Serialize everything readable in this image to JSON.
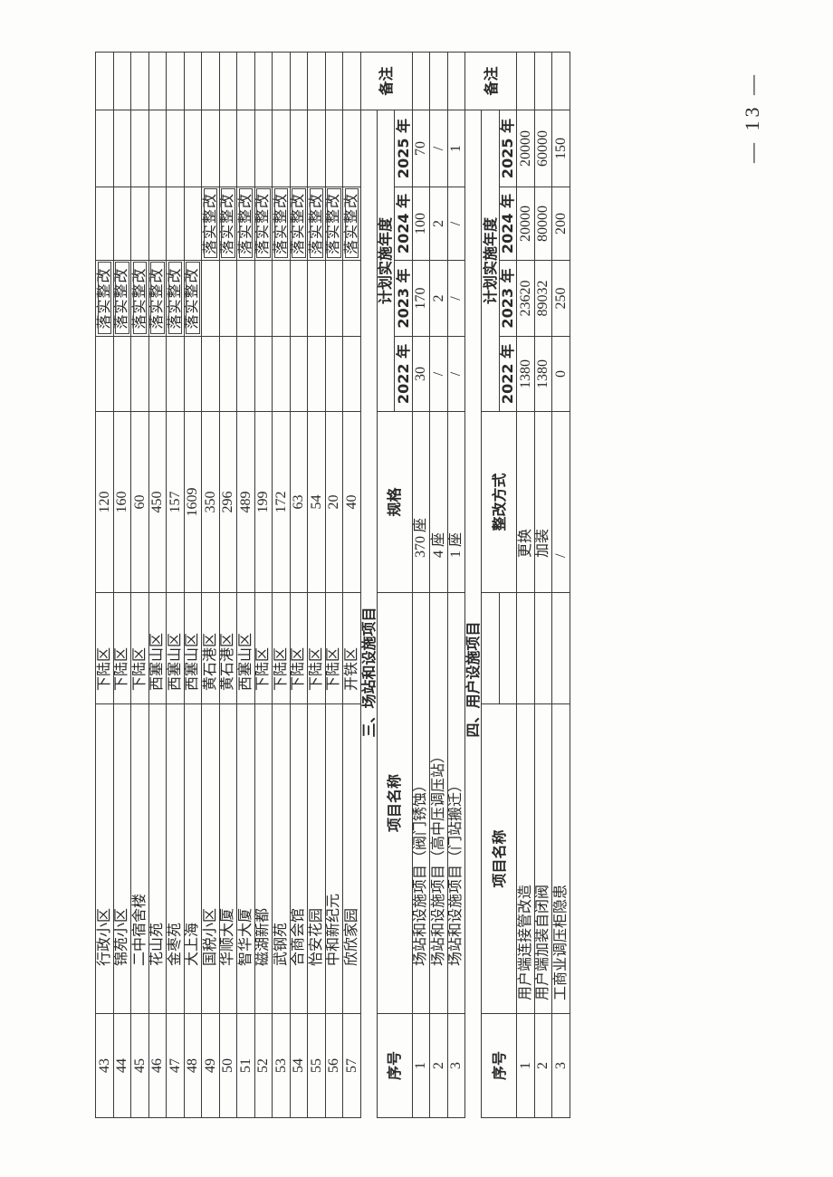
{
  "section_main": {
    "rows": [
      {
        "no": "43",
        "name": "行政小区",
        "district": "下陆区",
        "spec": "120",
        "y2022": "",
        "y2023": "落实整改",
        "y2024": "",
        "y2025": "",
        "note": ""
      },
      {
        "no": "44",
        "name": "锦苑小区",
        "district": "下陆区",
        "spec": "160",
        "y2022": "",
        "y2023": "落实整改",
        "y2024": "",
        "y2025": "",
        "note": ""
      },
      {
        "no": "45",
        "name": "二中宿舍楼",
        "district": "下陆区",
        "spec": "60",
        "y2022": "",
        "y2023": "落实整改",
        "y2024": "",
        "y2025": "",
        "note": ""
      },
      {
        "no": "46",
        "name": "花山苑",
        "district": "西塞山区",
        "spec": "450",
        "y2022": "",
        "y2023": "落实整改",
        "y2024": "",
        "y2025": "",
        "note": ""
      },
      {
        "no": "47",
        "name": "金枣苑",
        "district": "西塞山区",
        "spec": "157",
        "y2022": "",
        "y2023": "落实整改",
        "y2024": "",
        "y2025": "",
        "note": ""
      },
      {
        "no": "48",
        "name": "大上海",
        "district": "西塞山区",
        "spec": "1609",
        "y2022": "",
        "y2023": "落实整改",
        "y2024": "",
        "y2025": "",
        "note": ""
      },
      {
        "no": "49",
        "name": "国税小区",
        "district": "黄石港区",
        "spec": "350",
        "y2022": "",
        "y2023": "",
        "y2024": "落实整改",
        "y2025": "",
        "note": ""
      },
      {
        "no": "50",
        "name": "华顺大厦",
        "district": "黄石港区",
        "spec": "296",
        "y2022": "",
        "y2023": "",
        "y2024": "落实整改",
        "y2025": "",
        "note": ""
      },
      {
        "no": "51",
        "name": "智华大厦",
        "district": "西塞山区",
        "spec": "489",
        "y2022": "",
        "y2023": "",
        "y2024": "落实整改",
        "y2025": "",
        "note": ""
      },
      {
        "no": "52",
        "name": "磁湖新都",
        "district": "下陆区",
        "spec": "199",
        "y2022": "",
        "y2023": "",
        "y2024": "落实整改",
        "y2025": "",
        "note": ""
      },
      {
        "no": "53",
        "name": "武钢苑",
        "district": "下陆区",
        "spec": "172",
        "y2022": "",
        "y2023": "",
        "y2024": "落实整改",
        "y2025": "",
        "note": ""
      },
      {
        "no": "54",
        "name": "合商会馆",
        "district": "下陆区",
        "spec": "63",
        "y2022": "",
        "y2023": "",
        "y2024": "落实整改",
        "y2025": "",
        "note": ""
      },
      {
        "no": "55",
        "name": "怡安花园",
        "district": "下陆区",
        "spec": "54",
        "y2022": "",
        "y2023": "",
        "y2024": "落实整改",
        "y2025": "",
        "note": ""
      },
      {
        "no": "56",
        "name": "中和新纪元",
        "district": "下陆区",
        "spec": "20",
        "y2022": "",
        "y2023": "",
        "y2024": "落实整改",
        "y2025": "",
        "note": ""
      },
      {
        "no": "57",
        "name": "欣欣家园",
        "district": "开铁区",
        "spec": "40",
        "y2022": "",
        "y2023": "",
        "y2024": "落实整改",
        "y2025": "",
        "note": ""
      }
    ]
  },
  "section3": {
    "title": "三、场站和设施项目",
    "headers": {
      "no": "序号",
      "name": "项目名称",
      "spec": "规格",
      "plan": "计划实施年度",
      "y2022": "2022 年",
      "y2023": "2023 年",
      "y2024": "2024 年",
      "y2025": "2025 年",
      "note": "备注"
    },
    "rows": [
      {
        "no": "1",
        "name": "场站和设施项目（阀门锈蚀）",
        "spec": "370 座",
        "y2022": "30",
        "y2023": "170",
        "y2024": "100",
        "y2025": "70"
      },
      {
        "no": "2",
        "name": "场站和设施项目（高中压调压站）",
        "spec": "4 座",
        "y2022": "/",
        "y2023": "2",
        "y2024": "2",
        "y2025": "/"
      },
      {
        "no": "3",
        "name": "场站和设施项目（门站搬迁）",
        "spec": "1 座",
        "y2022": "/",
        "y2023": "/",
        "y2024": "/",
        "y2025": "1"
      }
    ]
  },
  "section4": {
    "title": "四、用户设施项目",
    "headers": {
      "no": "序号",
      "name": "项目名称",
      "method": "整改方式",
      "plan": "计划实施年度",
      "y2022": "2022 年",
      "y2023": "2023 年",
      "y2024": "2024 年",
      "y2025": "2025 年",
      "note": "备注"
    },
    "rows": [
      {
        "no": "1",
        "name": "用户端连接管改造",
        "method": "更换",
        "y2022": "1380",
        "y2023": "23620",
        "y2024": "20000",
        "y2025": "20000"
      },
      {
        "no": "2",
        "name": "用户端加装自闭阀",
        "method": "加装",
        "y2022": "1380",
        "y2023": "89032",
        "y2024": "80000",
        "y2025": "60000"
      },
      {
        "no": "3",
        "name": "工商业调压柜隐患",
        "method": "/",
        "y2022": "0",
        "y2023": "250",
        "y2024": "200",
        "y2025": "150"
      }
    ]
  },
  "page_number": "— 13 —"
}
